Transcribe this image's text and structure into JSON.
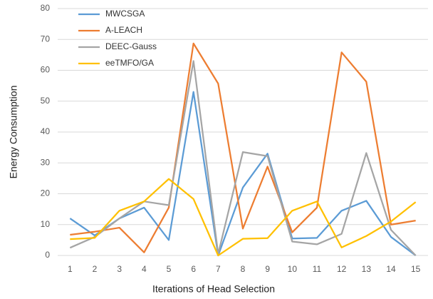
{
  "chart_data": {
    "type": "line",
    "x_label": "Iterations of Head Selection",
    "y_label": "Energy Consumption",
    "categories": [
      "1",
      "2",
      "3",
      "4",
      "5",
      "6",
      "7",
      "8",
      "9",
      "10",
      "11",
      "12",
      "13",
      "14",
      "15"
    ],
    "series": [
      {
        "name": "MWCSGA",
        "color": "#5b9bd5",
        "values": [
          12,
          6.5,
          12,
          15.5,
          5,
          53,
          0,
          22,
          33,
          5.5,
          5.7,
          14.5,
          17.7,
          6,
          0
        ]
      },
      {
        "name": "A-LEACH",
        "color": "#ed7d31",
        "values": [
          6.7,
          7.7,
          9,
          1,
          15.5,
          68.7,
          55.7,
          8.7,
          28.8,
          7.5,
          15.5,
          65.8,
          56.3,
          10,
          11.3
        ]
      },
      {
        "name": "DEEC-Gauss",
        "color": "#a5a5a5",
        "values": [
          2.5,
          6,
          12,
          17.5,
          16.3,
          63,
          0.5,
          33.5,
          32.2,
          4.5,
          3.6,
          7,
          33.2,
          8.3,
          0
        ]
      },
      {
        "name": "eeTMFO/GA",
        "color": "#ffc000",
        "values": [
          5.3,
          5.7,
          14.5,
          17.5,
          24.8,
          18.3,
          0,
          5.4,
          5.6,
          14.5,
          17.5,
          2.6,
          6.3,
          11,
          17.3
        ]
      }
    ],
    "ylim": [
      0,
      80
    ],
    "yticks": [
      0,
      10,
      20,
      30,
      40,
      50,
      60,
      70,
      80
    ],
    "grid": true,
    "legend": "top-left"
  }
}
